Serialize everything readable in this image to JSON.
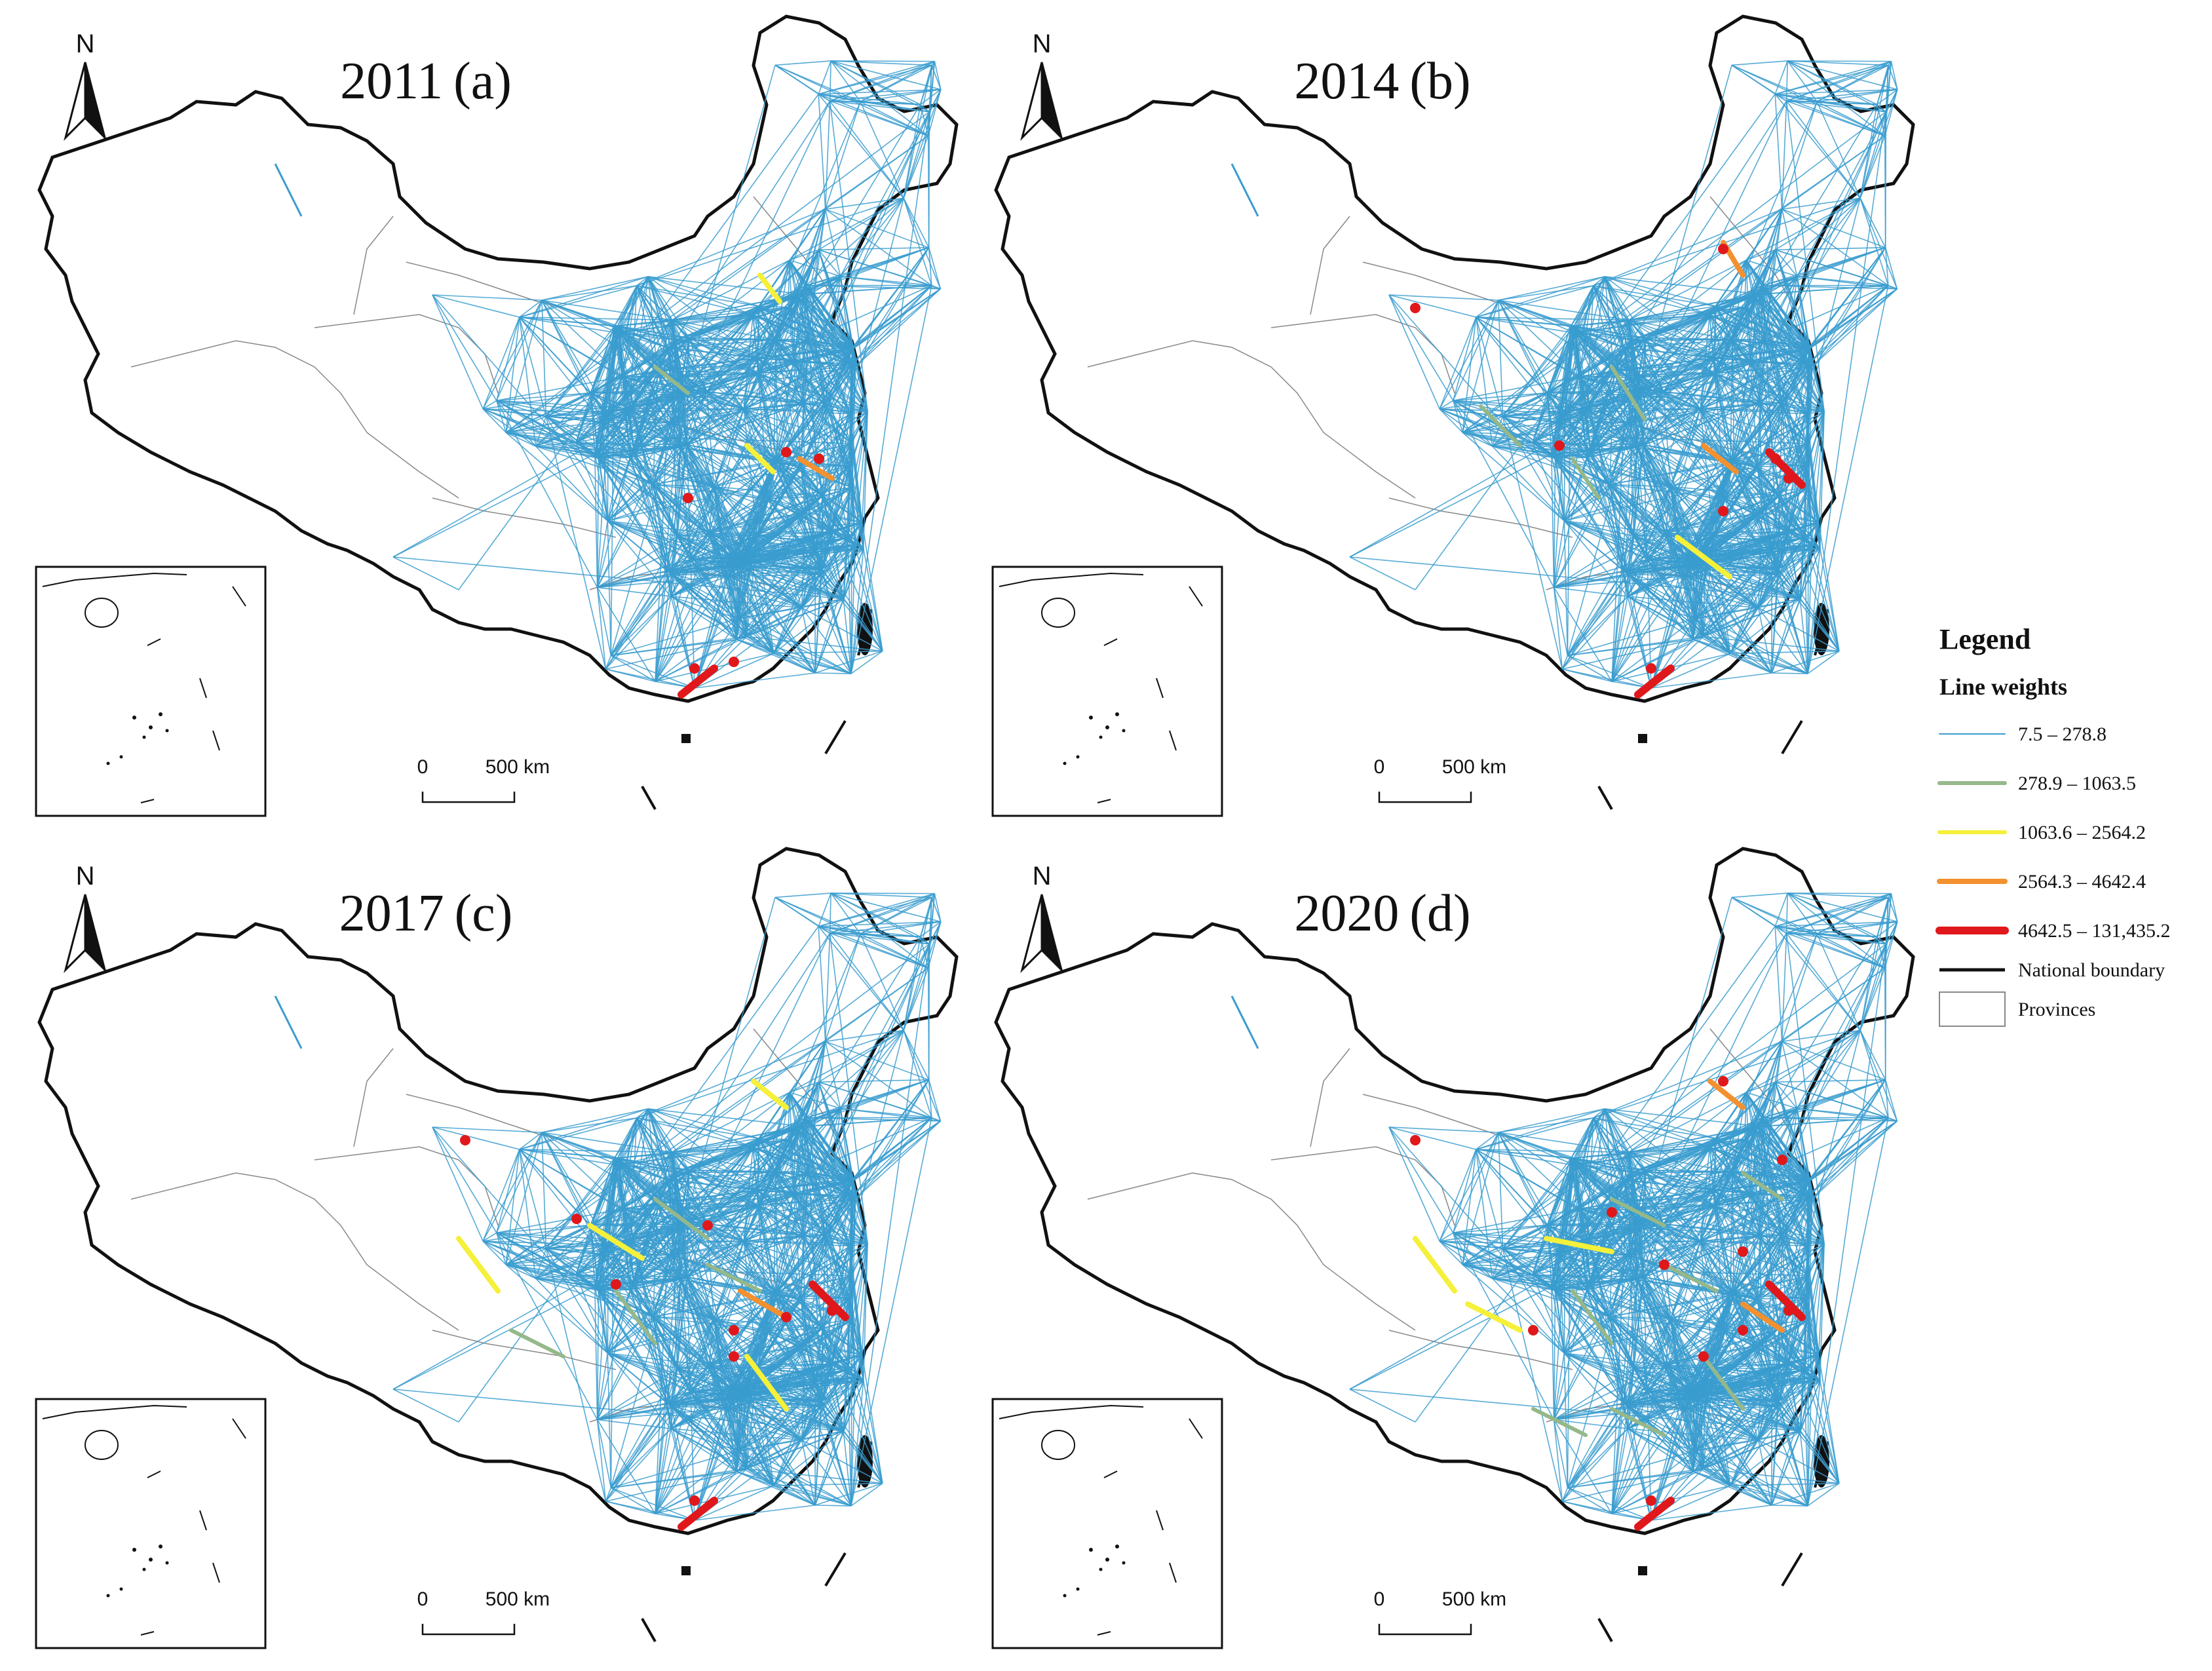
{
  "panels": [
    {
      "title": "2011 (a)",
      "intensity": 0
    },
    {
      "title": "2014 (b)",
      "intensity": 1
    },
    {
      "title": "2017 (c)",
      "intensity": 2
    },
    {
      "title": "2020 (d)",
      "intensity": 3
    }
  ],
  "north_label": "N",
  "scale_bar": {
    "zero": "0",
    "distance": "500 km"
  },
  "legend": {
    "title": "Legend",
    "subtitle": "Line weights",
    "classes": [
      {
        "label": "7.5 – 278.8",
        "color": "#3a9ccf"
      },
      {
        "label": "278.9 – 1063.5",
        "color": "#95b88a"
      },
      {
        "label": "1063.6 – 2564.2",
        "color": "#f5f03a"
      },
      {
        "label": "2564.3 – 4642.4",
        "color": "#f3902f"
      },
      {
        "label": "4642.5 – 131,435.2",
        "color": "#e0181b"
      }
    ],
    "boundary_label": "National boundary",
    "provinces_label": "Provinces"
  }
}
